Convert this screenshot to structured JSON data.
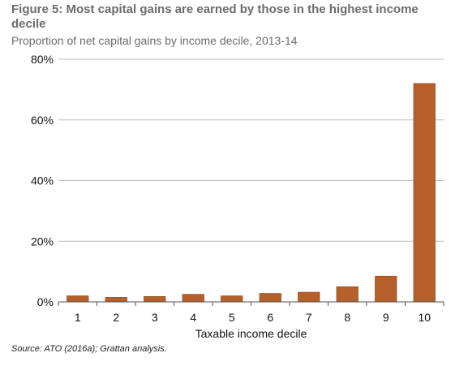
{
  "figure": {
    "title": "Figure 5: Most capital gains are earned by those in the highest income decile",
    "subtitle": "Proportion of net capital gains by income decile, 2013-14",
    "source": "Source: ATO (2016a); Grattan analysis."
  },
  "chart_data": {
    "type": "bar",
    "categories": [
      "1",
      "2",
      "3",
      "4",
      "5",
      "6",
      "7",
      "8",
      "9",
      "10"
    ],
    "values": [
      2.0,
      1.5,
      1.8,
      2.5,
      2.0,
      2.8,
      3.2,
      5.0,
      8.5,
      72.0
    ],
    "xlabel": "Taxable income decile",
    "ylabel": "",
    "ylim": [
      0,
      80
    ],
    "yticks": [
      0,
      20,
      40,
      60,
      80
    ],
    "ytick_labels": [
      "0%",
      "20%",
      "40%",
      "60%",
      "80%"
    ],
    "grid": true,
    "bar_color": "#b5602b"
  }
}
